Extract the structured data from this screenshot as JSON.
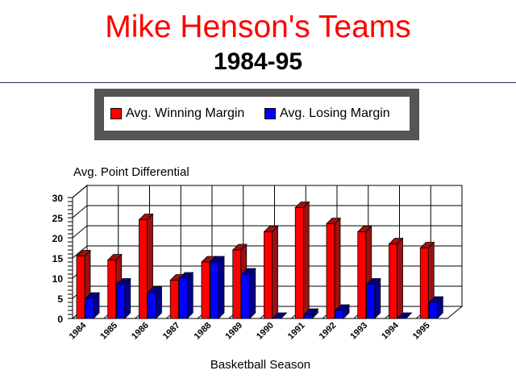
{
  "header": {
    "title": "Mike Henson's Teams",
    "subtitle": "1984-95"
  },
  "colors": {
    "title": "#ff0000",
    "win_face": "#ff0000",
    "win_shade": "#9e1010",
    "lose_face": "#0000ff",
    "lose_shade": "#00008a",
    "legend_frame": "#555555"
  },
  "chart_data": {
    "type": "bar",
    "title": "Avg. Point Differential",
    "xlabel": "Basketball Season",
    "ylabel": "",
    "ylim": [
      0,
      30
    ],
    "yticks": [
      "0",
      "5",
      "10",
      "15",
      "20",
      "25",
      "30"
    ],
    "grid": true,
    "legend_position": "top",
    "categories": [
      "1984",
      "1985",
      "1986",
      "1987",
      "1988",
      "1989",
      "1990",
      "1991",
      "1992",
      "1993",
      "1994",
      "1995"
    ],
    "series": [
      {
        "name": "Avg. Winning Margin",
        "values": [
          15.5,
          14.5,
          24.5,
          9.5,
          14,
          17,
          21.5,
          27.5,
          23.5,
          21.5,
          18.5,
          17.5
        ]
      },
      {
        "name": "Avg. Losing Margin",
        "values": [
          5,
          8.5,
          6.5,
          10,
          14,
          11,
          0,
          1,
          2,
          8.5,
          0,
          4
        ]
      }
    ]
  }
}
